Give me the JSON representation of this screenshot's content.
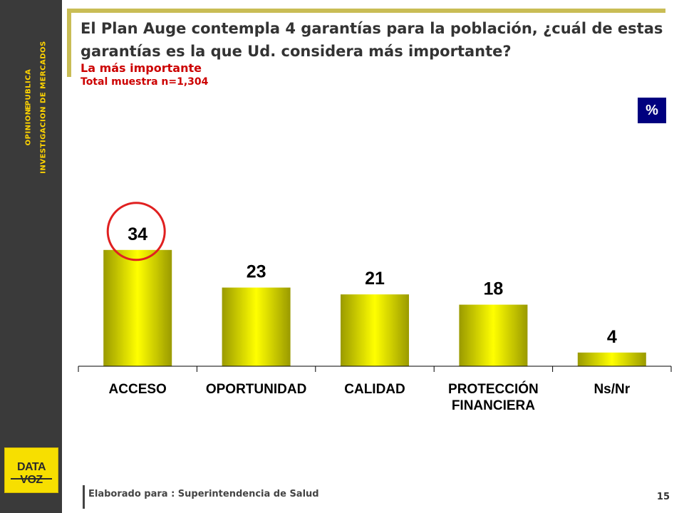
{
  "sidebar": {
    "line1": "OPINION PUBLICA",
    "line2": "E",
    "line3": "INVESTIGACION DE MERCADOS",
    "logo": "DATA VOZ"
  },
  "header": {
    "title": "El Plan Auge contempla 4 garantías para la población, ¿cuál de estas garantías es la que Ud. considera más importante?",
    "subtitle": "La más importante",
    "sample": "Total muestra n=1,304",
    "unit_badge": "%"
  },
  "footer": {
    "prepared_for": "Elaborado para : Superintendencia de Salud",
    "page_number": "15"
  },
  "colors": {
    "bar_light": "#ffff00",
    "bar_dark": "#9a9a00",
    "highlight_circle": "#e02020",
    "badge": "#00007f",
    "accent_rule": "#c9bd55"
  },
  "chart_data": {
    "type": "bar",
    "categories": [
      [
        "ACCESO"
      ],
      [
        "OPORTUNIDAD"
      ],
      [
        "CALIDAD"
      ],
      [
        "PROTECCIÓN",
        "FINANCIERA"
      ],
      [
        "Ns/Nr"
      ]
    ],
    "values": [
      34,
      23,
      21,
      18,
      4
    ],
    "highlighted_index": 0,
    "grid": false,
    "legend": "none",
    "ylim": [
      0,
      40
    ]
  }
}
